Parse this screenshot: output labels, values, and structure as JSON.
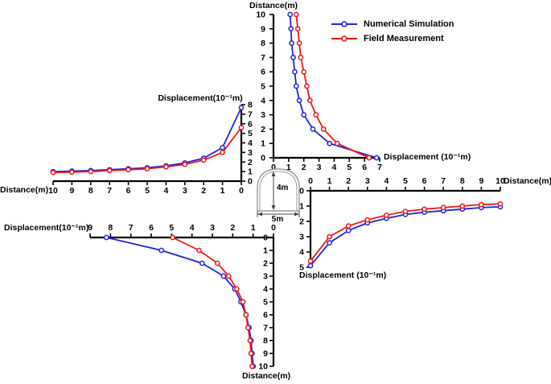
{
  "figure": {
    "legend": {
      "items": [
        {
          "label": "Numerical Simulation",
          "color": "#2222dd"
        },
        {
          "label": "Field Measurement",
          "color": "#f01515"
        }
      ]
    },
    "tunnel": {
      "height_label": "4m",
      "width_label": "5m"
    }
  },
  "chart_data": {
    "type": "line",
    "description": "Four-panel cross-shaped figure of displacement vs distance around a tunnel (up, left, right, down directions), comparing numerical simulation and field measurement.",
    "panels": [
      {
        "id": "top",
        "distance_axis": {
          "label": "Distance(m)",
          "min": 0,
          "max": 10,
          "ticks": [
            0,
            1,
            2,
            3,
            4,
            5,
            6,
            7,
            8,
            9,
            10
          ]
        },
        "displacement_axis": {
          "label": "Displacement (10⁻¹m)",
          "min": 0,
          "max": 7,
          "ticks": [
            0,
            1,
            2,
            3,
            4,
            5,
            6,
            7
          ]
        },
        "distance": [
          0,
          1,
          2,
          3,
          4,
          5,
          6,
          7,
          8,
          9,
          10
        ],
        "series": [
          {
            "name": "Numerical Simulation",
            "color": "#2222dd",
            "displacement": [
              6.8,
              3.7,
              2.6,
              2.0,
              1.7,
              1.5,
              1.4,
              1.3,
              1.2,
              1.15,
              1.1
            ]
          },
          {
            "name": "Field Measurement",
            "color": "#f01515",
            "displacement": [
              6.3,
              4.2,
              3.3,
              2.8,
              2.4,
              2.2,
              2.0,
              1.8,
              1.7,
              1.6,
              1.5
            ]
          }
        ]
      },
      {
        "id": "left",
        "distance_axis": {
          "label": "Distance(m)",
          "min": 0,
          "max": 10,
          "ticks": [
            0,
            1,
            2,
            3,
            4,
            5,
            6,
            7,
            8,
            9,
            10
          ]
        },
        "displacement_axis": {
          "label": "Displacement(10⁻¹m)",
          "min": 0,
          "max": 8,
          "ticks": [
            0,
            1,
            2,
            3,
            4,
            5,
            6,
            7,
            8
          ]
        },
        "distance": [
          0,
          1,
          2,
          3,
          4,
          5,
          6,
          7,
          8,
          9,
          10
        ],
        "series": [
          {
            "name": "Numerical Simulation",
            "color": "#2222dd",
            "displacement": [
              7.7,
              3.5,
              2.4,
              1.9,
              1.6,
              1.4,
              1.3,
              1.2,
              1.1,
              1.05,
              1.0
            ]
          },
          {
            "name": "Field Measurement",
            "color": "#f01515",
            "displacement": [
              5.6,
              3.0,
              2.2,
              1.75,
              1.5,
              1.3,
              1.2,
              1.1,
              1.0,
              0.95,
              0.9
            ]
          }
        ]
      },
      {
        "id": "right",
        "distance_axis": {
          "label": "Distance(m)",
          "min": 0,
          "max": 10,
          "ticks": [
            0,
            1,
            2,
            3,
            4,
            5,
            6,
            7,
            8,
            9,
            10
          ]
        },
        "displacement_axis": {
          "label": "Displacement (10⁻¹m)",
          "min": 0,
          "max": 5,
          "ticks": [
            0,
            1,
            2,
            3,
            4,
            5
          ]
        },
        "distance": [
          0,
          1,
          2,
          3,
          4,
          5,
          6,
          7,
          8,
          9,
          10
        ],
        "series": [
          {
            "name": "Numerical Simulation",
            "color": "#2222dd",
            "displacement": [
              4.9,
              3.4,
              2.6,
              2.1,
              1.8,
              1.55,
              1.4,
              1.3,
              1.2,
              1.1,
              1.05
            ]
          },
          {
            "name": "Field Measurement",
            "color": "#f01515",
            "displacement": [
              4.6,
              3.0,
              2.3,
              1.9,
              1.6,
              1.35,
              1.2,
              1.1,
              1.0,
              0.9,
              0.85
            ]
          }
        ]
      },
      {
        "id": "bottom",
        "distance_axis": {
          "label": "Distance(m)",
          "min": 0,
          "max": 10,
          "ticks": [
            0,
            1,
            2,
            3,
            4,
            5,
            6,
            7,
            8,
            9,
            10
          ]
        },
        "displacement_axis": {
          "label": "Displacement(10⁻¹m)",
          "min": 0,
          "max": 9,
          "ticks": [
            0,
            1,
            2,
            3,
            4,
            5,
            6,
            7,
            8,
            9
          ]
        },
        "distance": [
          0,
          1,
          2,
          3,
          4,
          5,
          6,
          7,
          8,
          9,
          10
        ],
        "series": [
          {
            "name": "Numerical Simulation",
            "color": "#2222dd",
            "displacement": [
              8.2,
              5.5,
              3.5,
              2.45,
              1.9,
              1.6,
              1.35,
              1.2,
              1.1,
              1.05,
              1.0
            ]
          },
          {
            "name": "Field Measurement",
            "color": "#f01515",
            "displacement": [
              4.95,
              3.65,
              2.75,
              2.2,
              1.8,
              1.5,
              1.35,
              1.25,
              1.15,
              1.1,
              1.05
            ]
          }
        ]
      }
    ]
  }
}
